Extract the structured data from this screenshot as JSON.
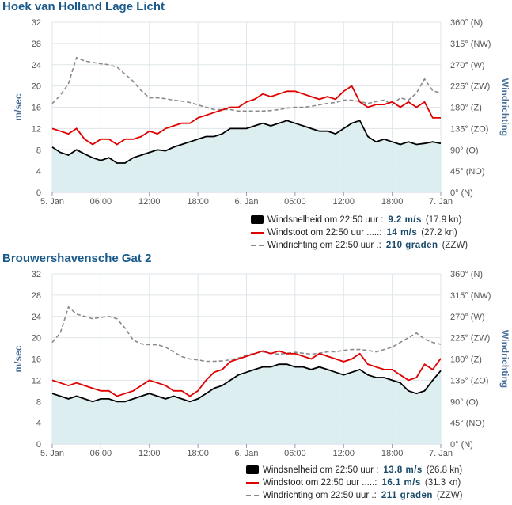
{
  "chart_data": [
    {
      "type": "line",
      "title": "Hoek van Holland Lage Licht",
      "ylabel": "m/sec",
      "y2label": "Windrichting",
      "ylim": [
        0,
        32
      ],
      "yticks": [
        "0",
        "4",
        "8",
        "12",
        "16",
        "20",
        "24",
        "28",
        "32"
      ],
      "y2ticks": [
        "0° (N)",
        "45° (NO)",
        "90° (O)",
        "135° (ZO)",
        "180° (Z)",
        "225° (ZW)",
        "270° (W)",
        "315° (NW)",
        "360° (N)"
      ],
      "xticks": [
        "5. Jan",
        "06:00",
        "12:00",
        "18:00",
        "6. Jan",
        "06:00",
        "12:00",
        "18:00",
        "7. Jan"
      ],
      "series": [
        {
          "name": "Windsnelheid",
          "color": "#000000",
          "x": [
            0,
            1,
            2,
            3,
            4,
            5,
            6,
            7,
            8,
            9,
            10,
            11,
            12,
            13,
            14,
            15,
            16,
            17,
            18,
            19,
            20,
            21,
            22,
            23,
            24,
            25,
            26,
            27,
            28,
            29,
            30,
            31,
            32,
            33,
            34,
            35,
            36,
            37,
            38,
            39,
            40,
            41,
            42,
            43,
            44,
            45,
            46,
            47,
            48
          ],
          "values": [
            8.5,
            7.5,
            7,
            8,
            7.2,
            6.5,
            6,
            6.5,
            5.5,
            5.5,
            6.5,
            7,
            7.5,
            8,
            7.8,
            8.5,
            9,
            9.5,
            10,
            10.5,
            10.5,
            11,
            12,
            12,
            12,
            12.5,
            13,
            12.5,
            13,
            13.5,
            13,
            12.5,
            12,
            11.5,
            11.5,
            11,
            12,
            13,
            13.5,
            10.5,
            9.5,
            10,
            9.5,
            9,
            9.5,
            9,
            9.2,
            9.5,
            9.2
          ]
        },
        {
          "name": "Windstoot",
          "color": "#e00000",
          "x": [
            0,
            1,
            2,
            3,
            4,
            5,
            6,
            7,
            8,
            9,
            10,
            11,
            12,
            13,
            14,
            15,
            16,
            17,
            18,
            19,
            20,
            21,
            22,
            23,
            24,
            25,
            26,
            27,
            28,
            29,
            30,
            31,
            32,
            33,
            34,
            35,
            36,
            37,
            38,
            39,
            40,
            41,
            42,
            43,
            44,
            45,
            46,
            47,
            48
          ],
          "values": [
            12,
            11.5,
            11,
            12,
            10,
            9,
            10,
            10,
            9,
            10,
            10,
            10.5,
            11.5,
            11,
            12,
            12.5,
            13,
            13,
            14,
            14.5,
            15,
            15.5,
            16,
            16,
            17,
            17.5,
            18.5,
            18,
            18.5,
            19,
            19,
            18.5,
            18,
            17.5,
            18,
            17.5,
            19,
            20,
            17,
            16,
            16.5,
            16.5,
            17,
            16,
            17,
            16,
            17,
            14,
            14
          ]
        },
        {
          "name": "Windrichting",
          "color": "#888888",
          "dashed": true,
          "axis": "right",
          "x": [
            0,
            1,
            2,
            3,
            4,
            5,
            6,
            7,
            8,
            9,
            10,
            11,
            12,
            13,
            14,
            15,
            16,
            17,
            18,
            19,
            20,
            21,
            22,
            23,
            24,
            25,
            26,
            27,
            28,
            29,
            30,
            31,
            32,
            33,
            34,
            35,
            36,
            37,
            38,
            39,
            40,
            41,
            42,
            43,
            44,
            45,
            46,
            47,
            48
          ],
          "values": [
            188,
            205,
            230,
            285,
            278,
            275,
            272,
            270,
            265,
            250,
            235,
            215,
            200,
            200,
            198,
            195,
            193,
            190,
            185,
            180,
            175,
            175,
            175,
            172,
            172,
            172,
            172,
            173,
            175,
            178,
            180,
            180,
            182,
            185,
            188,
            190,
            195,
            195,
            192,
            188,
            192,
            195,
            185,
            200,
            195,
            210,
            240,
            215,
            210
          ]
        }
      ],
      "legend": [
        {
          "label": "Windsnelheid om 22:50 uur :",
          "value": "9.2 m/s",
          "extra": "(17.9 kn)"
        },
        {
          "label": "Windstoot om 22:50 uur .....:",
          "value": "14 m/s",
          "extra": "(27.2 kn)"
        },
        {
          "label": "Windrichting om 22:50 uur .:",
          "value": "210 graden",
          "extra": "(ZZW)"
        }
      ]
    },
    {
      "type": "line",
      "title": "Brouwershavensche Gat 2",
      "ylabel": "m/sec",
      "y2label": "Windrichting",
      "ylim": [
        0,
        32
      ],
      "yticks": [
        "0",
        "4",
        "8",
        "12",
        "16",
        "20",
        "24",
        "28",
        "32"
      ],
      "y2ticks": [
        "0° (N)",
        "45° (NO)",
        "90° (O)",
        "135° (ZO)",
        "180° (Z)",
        "225° (ZW)",
        "270° (W)",
        "315° (NW)",
        "360° (N)"
      ],
      "xticks": [
        "5. Jan",
        "06:00",
        "12:00",
        "18:00",
        "6. Jan",
        "06:00",
        "12:00",
        "18:00",
        "7. Jan"
      ],
      "series": [
        {
          "name": "Windsnelheid",
          "color": "#000000",
          "x": [
            0,
            1,
            2,
            3,
            4,
            5,
            6,
            7,
            8,
            9,
            10,
            11,
            12,
            13,
            14,
            15,
            16,
            17,
            18,
            19,
            20,
            21,
            22,
            23,
            24,
            25,
            26,
            27,
            28,
            29,
            30,
            31,
            32,
            33,
            34,
            35,
            36,
            37,
            38,
            39,
            40,
            41,
            42,
            43,
            44,
            45,
            46,
            47,
            48
          ],
          "values": [
            9.5,
            9,
            8.5,
            9,
            8.5,
            8,
            8.5,
            8.5,
            8,
            8,
            8.5,
            9,
            9.5,
            9,
            8.5,
            9,
            8.5,
            8,
            8.5,
            9.5,
            10.5,
            11,
            12,
            13,
            13.5,
            14,
            14.5,
            14.5,
            15,
            15,
            14.5,
            14.5,
            14,
            14.5,
            14,
            13.5,
            13,
            13.5,
            14,
            13,
            12.5,
            12.5,
            12,
            11.5,
            10,
            9.5,
            10,
            12,
            13.8
          ]
        },
        {
          "name": "Windstoot",
          "color": "#e00000",
          "x": [
            0,
            1,
            2,
            3,
            4,
            5,
            6,
            7,
            8,
            9,
            10,
            11,
            12,
            13,
            14,
            15,
            16,
            17,
            18,
            19,
            20,
            21,
            22,
            23,
            24,
            25,
            26,
            27,
            28,
            29,
            30,
            31,
            32,
            33,
            34,
            35,
            36,
            37,
            38,
            39,
            40,
            41,
            42,
            43,
            44,
            45,
            46,
            47,
            48
          ],
          "values": [
            12,
            11.5,
            11,
            11.5,
            11,
            10.5,
            10,
            10,
            9,
            9.5,
            10,
            11,
            12,
            11.5,
            11,
            10,
            10,
            9,
            10,
            12,
            13.5,
            14,
            15.5,
            16,
            16.5,
            17,
            17.5,
            17,
            17.5,
            17,
            17,
            16.5,
            16,
            17,
            16.5,
            16,
            15.5,
            16,
            17,
            15,
            14.5,
            14,
            14,
            13,
            12,
            12.5,
            15,
            14,
            16.1
          ]
        },
        {
          "name": "Windrichting",
          "color": "#888888",
          "dashed": true,
          "axis": "right",
          "x": [
            0,
            1,
            2,
            3,
            4,
            5,
            6,
            7,
            8,
            9,
            10,
            11,
            12,
            13,
            14,
            15,
            16,
            17,
            18,
            19,
            20,
            21,
            22,
            23,
            24,
            25,
            26,
            27,
            28,
            29,
            30,
            31,
            32,
            33,
            34,
            35,
            36,
            37,
            38,
            39,
            40,
            41,
            42,
            43,
            44,
            45,
            46,
            47,
            48
          ],
          "values": [
            215,
            235,
            290,
            275,
            270,
            265,
            268,
            270,
            265,
            245,
            220,
            212,
            210,
            210,
            205,
            195,
            185,
            180,
            178,
            175,
            175,
            176,
            178,
            182,
            188,
            192,
            195,
            192,
            190,
            192,
            194,
            192,
            190,
            192,
            195,
            195,
            198,
            200,
            200,
            198,
            195,
            200,
            205,
            215,
            225,
            235,
            222,
            215,
            211
          ]
        }
      ],
      "legend": [
        {
          "label": "Windsnelheid om 22:50 uur :",
          "value": "13.8 m/s",
          "extra": "(26.8 kn)"
        },
        {
          "label": "Windstoot om 22:50 uur .....:",
          "value": "16.1 m/s",
          "extra": "(31.3 kn)"
        },
        {
          "label": "Windrichting om 22:50 uur .:",
          "value": "211 graden",
          "extra": "(ZZW)"
        }
      ]
    }
  ]
}
